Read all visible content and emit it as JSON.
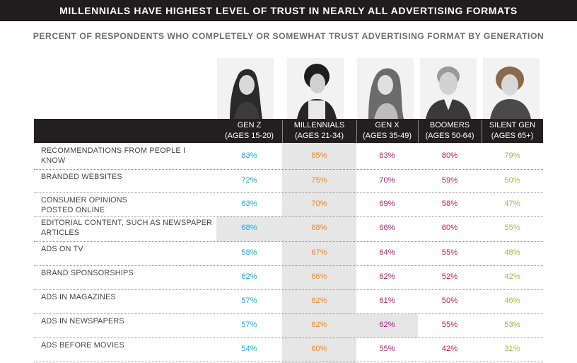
{
  "title": "MILLENNIALS HAVE HIGHEST LEVEL OF TRUST IN NEARLY ALL ADVERTISING FORMATS",
  "subtitle": "PERCENT OF RESPONDENTS WHO COMPLETELY OR SOMEWHAT TRUST ADVERTISING FORMAT BY GENERATION",
  "colors": {
    "gen_z": "#1ba9d3",
    "millennials": "#f0892a",
    "gen_x": "#a9287f",
    "boomers": "#cc1d4a",
    "silent_gen": "#8cc63e"
  },
  "columns": [
    {
      "name": "GEN Z",
      "ages": "(AGES 15-20)",
      "key": "gen_z",
      "photo": "gen-z-photo"
    },
    {
      "name": "MILLENNIALS",
      "ages": "(AGES 21-34)",
      "key": "millennials",
      "photo": "millennials-photo"
    },
    {
      "name": "GEN X",
      "ages": "(AGES 35-49)",
      "key": "gen_x",
      "photo": "gen-x-photo"
    },
    {
      "name": "BOOMERS",
      "ages": "(AGES 50-64)",
      "key": "boomers",
      "photo": "boomers-photo"
    },
    {
      "name": "SILENT GEN",
      "ages": "(AGES 65+)",
      "key": "silent_gen",
      "photo": "silent-gen-photo"
    }
  ],
  "chart_data": {
    "type": "table",
    "title": "MILLENNIALS HAVE HIGHEST LEVEL OF TRUST IN NEARLY ALL ADVERTISING FORMATS",
    "subtitle": "PERCENT OF RESPONDENTS WHO COMPLETELY OR SOMEWHAT TRUST ADVERTISING FORMAT BY GENERATION",
    "categories": [
      "RECOMMENDATIONS FROM PEOPLE I KNOW",
      "BRANDED WEBSITES",
      "CONSUMER OPINIONS POSTED ONLINE",
      "EDITORIAL CONTENT, SUCH AS NEWSPAPER ARTICLES",
      "ADS ON TV",
      "BRAND SPONSORSHIPS",
      "ADS IN MAGAZINES",
      "ADS IN NEWSPAPERS",
      "ADS BEFORE MOVIES"
    ],
    "series": [
      {
        "name": "GEN Z (AGES 15-20)",
        "values": [
          "83%",
          "72%",
          "63%",
          "68%",
          "58%",
          "62%",
          "57%",
          "57%",
          "54%"
        ]
      },
      {
        "name": "MILLENNIALS (AGES 21-34)",
        "values": [
          "85%",
          "75%",
          "70%",
          "68%",
          "67%",
          "66%",
          "62%",
          "62%",
          "60%"
        ]
      },
      {
        "name": "GEN X (AGES 35-49)",
        "values": [
          "83%",
          "70%",
          "69%",
          "66%",
          "64%",
          "62%",
          "61%",
          "62%",
          "55%"
        ]
      },
      {
        "name": "BOOMERS (AGES 50-64)",
        "values": [
          "80%",
          "59%",
          "58%",
          "60%",
          "55%",
          "52%",
          "50%",
          "55%",
          "42%"
        ]
      },
      {
        "name": "SILENT GEN (AGES 65+)",
        "values": [
          "79%",
          "50%",
          "47%",
          "55%",
          "48%",
          "42%",
          "46%",
          "53%",
          "31%"
        ]
      }
    ],
    "highlighted_cells": [
      {
        "row": 3,
        "col": 0
      },
      {
        "row": 7,
        "col": 2
      }
    ],
    "highlighted_column": 1
  }
}
